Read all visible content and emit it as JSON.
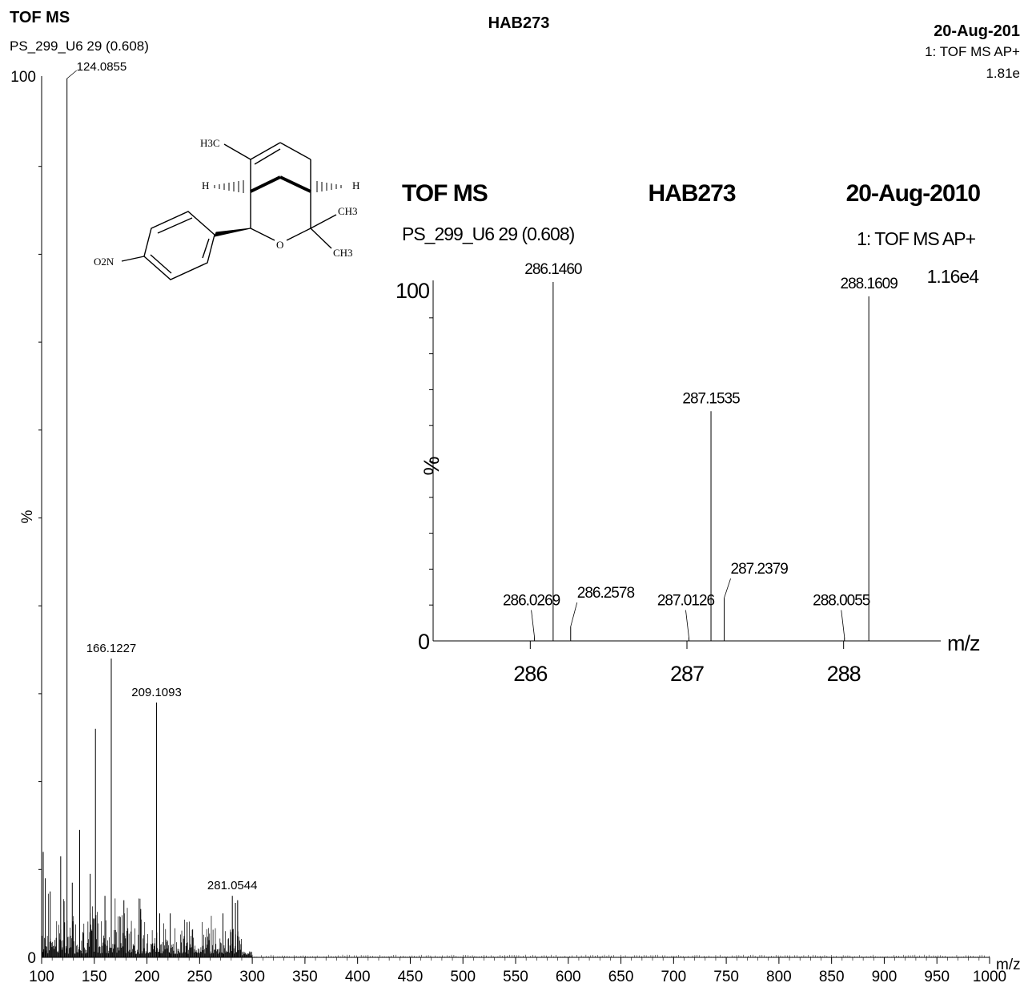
{
  "chart_data": [
    {
      "type": "bar",
      "header": {
        "left_title": "TOF MS",
        "left_subtitle": "PS_299_U6 29 (0.608)",
        "center_title": "HAB273",
        "right_date": "20-Aug-201",
        "right_mode": "1: TOF MS AP+",
        "right_intensity": "1.81e"
      },
      "xlabel": "m/z",
      "ylabel": "%",
      "xlim": [
        100,
        1000
      ],
      "ylim": [
        0,
        100
      ],
      "x_ticks": [
        100,
        150,
        200,
        250,
        300,
        350,
        400,
        450,
        500,
        550,
        600,
        650,
        700,
        750,
        800,
        850,
        900,
        950,
        1000
      ],
      "y_ticks": [
        0,
        100
      ],
      "peaks": [
        {
          "x": 124.0855,
          "y": 100,
          "label": "124.0855"
        },
        {
          "x": 166.1227,
          "y": 34,
          "label": "166.1227"
        },
        {
          "x": 209.1093,
          "y": 29,
          "label": "209.1093"
        },
        {
          "x": 281.0544,
          "y": 7,
          "label": "281.0544"
        },
        {
          "x": 151.1,
          "y": 26,
          "label": ""
        },
        {
          "x": 136.1,
          "y": 14.5,
          "label": ""
        },
        {
          "x": 118.1,
          "y": 11.5,
          "label": ""
        },
        {
          "x": 108.1,
          "y": 7.5,
          "label": ""
        },
        {
          "x": 178.1,
          "y": 6.5,
          "label": ""
        },
        {
          "x": 194.1,
          "y": 5.5,
          "label": ""
        },
        {
          "x": 146.1,
          "y": 9.5,
          "label": ""
        },
        {
          "x": 129.1,
          "y": 8.5,
          "label": ""
        },
        {
          "x": 160.1,
          "y": 7,
          "label": ""
        },
        {
          "x": 101.5,
          "y": 12,
          "label": ""
        },
        {
          "x": 103.5,
          "y": 9,
          "label": ""
        },
        {
          "x": 212.1,
          "y": 5,
          "label": ""
        },
        {
          "x": 222.1,
          "y": 5,
          "label": ""
        },
        {
          "x": 238.1,
          "y": 4,
          "label": ""
        },
        {
          "x": 272.1,
          "y": 5,
          "label": ""
        },
        {
          "x": 286.1,
          "y": 6.5,
          "label": ""
        },
        {
          "x": 284.0,
          "y": 6.2,
          "label": ""
        }
      ]
    },
    {
      "type": "bar",
      "header": {
        "left_title": "TOF MS",
        "left_subtitle": "PS_299_U6 29 (0.608)",
        "center_title": "HAB273",
        "right_date": "20-Aug-2010",
        "right_mode": "1: TOF MS AP+",
        "right_intensity": "1.16e4"
      },
      "xlabel": "m/z",
      "ylabel": "%",
      "xlim": [
        285.38,
        288.62
      ],
      "ylim": [
        0,
        100
      ],
      "x_ticks": [
        286,
        287,
        288
      ],
      "y_ticks": [
        0,
        100
      ],
      "peaks": [
        {
          "x": 286.146,
          "y": 100,
          "label": "286.1460"
        },
        {
          "x": 288.1609,
          "y": 96,
          "label": "288.1609"
        },
        {
          "x": 287.1535,
          "y": 64,
          "label": "287.1535"
        },
        {
          "x": 287.2379,
          "y": 12,
          "label": "287.2379"
        },
        {
          "x": 286.2578,
          "y": 4,
          "label": "286.2578"
        },
        {
          "x": 286.0269,
          "y": 1,
          "label": "286.0269"
        },
        {
          "x": 287.0126,
          "y": 1,
          "label": "287.0126"
        },
        {
          "x": 288.0055,
          "y": 1,
          "label": "288.0055"
        }
      ]
    }
  ],
  "structure": {
    "atoms": [
      "H3C",
      "H",
      "H",
      "CH3",
      "CH3",
      "O",
      "O2N"
    ]
  }
}
